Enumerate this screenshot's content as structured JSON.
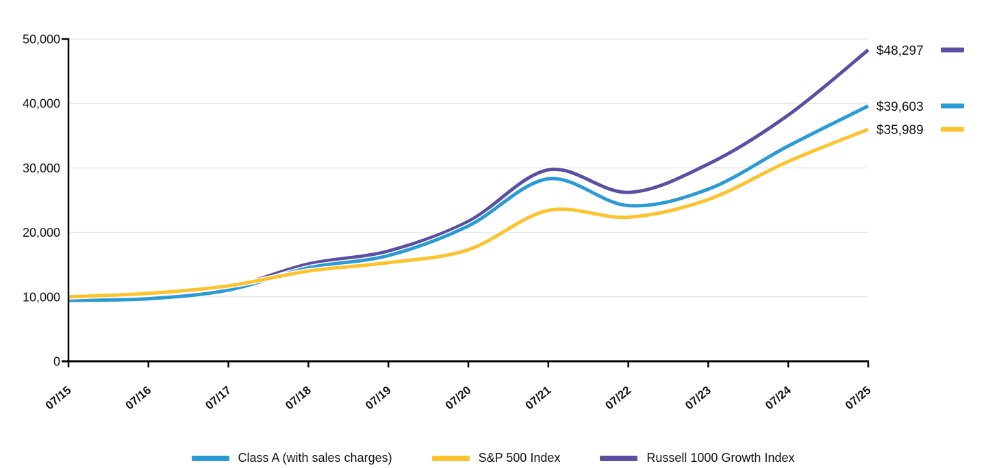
{
  "chart_data": {
    "type": "line",
    "title": "",
    "xlabel": "",
    "ylabel": "",
    "x_tick_labels": [
      "07/15",
      "07/16",
      "07/17",
      "07/18",
      "07/19",
      "07/20",
      "07/21",
      "07/22",
      "07/23",
      "07/24",
      "07/25"
    ],
    "y_tick_labels": [
      "0",
      "10,000",
      "20,000",
      "30,000",
      "40,000",
      "50,000"
    ],
    "y_tick_values": [
      0,
      10000,
      20000,
      30000,
      40000,
      50000
    ],
    "ylim": [
      0,
      50000
    ],
    "grid": "horizontal",
    "legend_position": "bottom",
    "colors": {
      "grid": "#e6e6e6",
      "axis": "#000000",
      "text": "#111111"
    },
    "series": [
      {
        "key": "class-a",
        "name": "Class A (with sales charges)",
        "color": "#2a9bd5",
        "end_label": "$39,603",
        "end_value": 39603,
        "values": [
          9450,
          9700,
          11050,
          14500,
          16400,
          21000,
          28300,
          24150,
          26700,
          33400,
          39603
        ]
      },
      {
        "key": "sp-500",
        "name": "S&P 500 Index",
        "color": "#fdc32e",
        "end_label": "$35,989",
        "end_value": 35989,
        "values": [
          10000,
          10530,
          11700,
          14000,
          15300,
          17300,
          23400,
          22350,
          25100,
          31000,
          35989
        ]
      },
      {
        "key": "russell-1000-growth",
        "name": "Russell 1000 Growth Index",
        "color": "#5a4fa2",
        "end_label": "$48,297",
        "end_value": 48297,
        "values": [
          10000,
          10450,
          11500,
          15100,
          17100,
          21700,
          29700,
          26200,
          30600,
          38200,
          48297
        ]
      }
    ]
  }
}
